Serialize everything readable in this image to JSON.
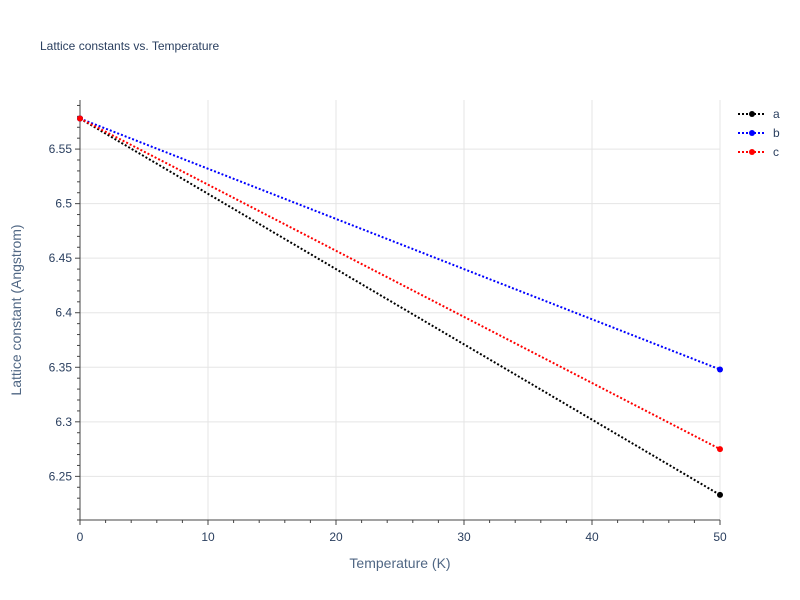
{
  "chart_data": {
    "type": "line",
    "title": "Lattice constants vs. Temperature",
    "xlabel": "Temperature (K)",
    "ylabel": "Lattice constant (Angstrom)",
    "x": [
      0,
      50
    ],
    "xlim": [
      0,
      50
    ],
    "ylim": [
      6.21,
      6.595
    ],
    "xticks": [
      0,
      10,
      20,
      30,
      40,
      50
    ],
    "yticks": [
      6.25,
      6.3,
      6.35,
      6.4,
      6.45,
      6.5,
      6.55
    ],
    "xtick_labels": [
      "0",
      "10",
      "20",
      "30",
      "40",
      "50"
    ],
    "ytick_labels": [
      "6.25",
      "6.3",
      "6.35",
      "6.4",
      "6.45",
      "6.5",
      "6.55"
    ],
    "grid": true,
    "legend": "top-right",
    "series": [
      {
        "name": "a",
        "color": "#000000",
        "values": [
          6.578,
          6.233
        ]
      },
      {
        "name": "b",
        "color": "#0000ff",
        "values": [
          6.578,
          6.348
        ]
      },
      {
        "name": "c",
        "color": "#ff0000",
        "values": [
          6.578,
          6.275
        ]
      }
    ]
  }
}
